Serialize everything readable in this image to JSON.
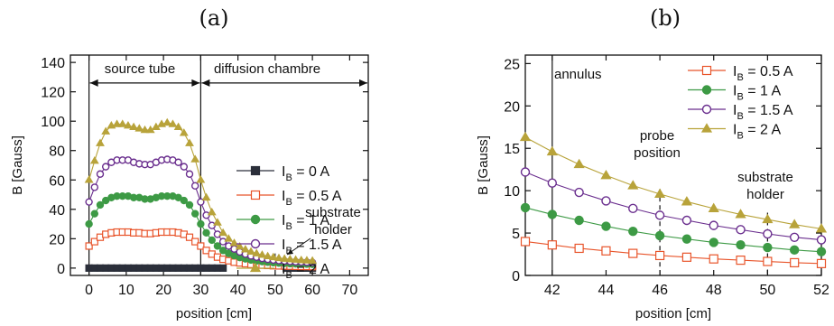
{
  "chart_data": [
    {
      "type": "scatter",
      "panel_label": "(a)",
      "xlabel": "position [cm]",
      "ylabel": "B [Gauss]",
      "xlim": [
        -5,
        75
      ],
      "ylim": [
        -5,
        145
      ],
      "xticks": [
        0,
        10,
        20,
        30,
        40,
        50,
        60,
        70
      ],
      "yticks": [
        0,
        20,
        40,
        60,
        80,
        100,
        120,
        140
      ],
      "grid": false,
      "legend_position": "right",
      "annotations": {
        "source_tube": "source tube",
        "diffusion_chambre": "diffusion chambre",
        "substrate": "substrate",
        "holder": "holder"
      },
      "vlines": [
        0,
        30
      ],
      "region_arrow_y": 126,
      "series": [
        {
          "name": "0 A",
          "marker": "square-filled",
          "color": "#2b2f3a",
          "x": [
            0,
            1.5,
            3,
            4.5,
            6,
            7.5,
            9,
            10.5,
            12,
            13.5,
            15,
            16.5,
            18,
            19.5,
            21,
            22.5,
            24,
            25.5,
            27,
            28.5,
            30,
            31.5,
            33,
            34.5,
            36,
            53,
            54,
            55,
            56,
            57,
            58,
            59,
            60
          ],
          "y": [
            0,
            0,
            0,
            0,
            0,
            0,
            0,
            0,
            0,
            0,
            0,
            0,
            0,
            0,
            0,
            0,
            0,
            0,
            0,
            0,
            0,
            0,
            0,
            0,
            0,
            0,
            0,
            0,
            0,
            0,
            0,
            0,
            0
          ]
        },
        {
          "name": "0.5 A",
          "marker": "square-open",
          "color": "#e8542a",
          "x": [
            0,
            1.5,
            3,
            4.5,
            6,
            7.5,
            9,
            10.5,
            12,
            13.5,
            15,
            16.5,
            18,
            19.5,
            21,
            22.5,
            24,
            25.5,
            27,
            28.5,
            30,
            31.5,
            33,
            34.5,
            36,
            37.5,
            39,
            40.5,
            42,
            43.5,
            45,
            46.5,
            48,
            49.5,
            51,
            52.5,
            54,
            55.5,
            57,
            58.5,
            60
          ],
          "y": [
            15,
            18,
            21,
            23,
            24,
            24.5,
            24.5,
            24.5,
            24,
            24,
            23.5,
            23.5,
            24,
            24.5,
            24.5,
            24.5,
            24,
            23,
            21,
            18,
            15,
            12,
            9.5,
            7.5,
            6,
            5,
            4,
            3.5,
            3,
            2.5,
            2.2,
            2,
            1.8,
            1.6,
            1.5,
            1.4,
            1.3,
            1.2,
            1.1,
            1.1,
            1
          ]
        },
        {
          "name": "1 A",
          "marker": "circle-filled",
          "color": "#3d9a45",
          "x": [
            0,
            1.5,
            3,
            4.5,
            6,
            7.5,
            9,
            10.5,
            12,
            13.5,
            15,
            16.5,
            18,
            19.5,
            21,
            22.5,
            24,
            25.5,
            27,
            28.5,
            30,
            31.5,
            33,
            34.5,
            36,
            37.5,
            39,
            40.5,
            42,
            43.5,
            45,
            46.5,
            48,
            49.5,
            51,
            52.5,
            54,
            55.5,
            57,
            58.5,
            60
          ],
          "y": [
            30,
            37,
            43,
            46,
            48,
            49,
            49,
            49,
            48,
            48,
            47,
            47,
            48,
            49,
            49,
            49,
            48,
            46,
            43,
            37,
            30,
            24,
            19,
            15,
            12,
            10,
            8.5,
            7.2,
            6.3,
            5.5,
            4.9,
            4.4,
            4,
            3.7,
            3.4,
            3.2,
            3,
            2.9,
            2.8,
            2.7,
            2.6
          ]
        },
        {
          "name": "1.5 A",
          "marker": "circle-open",
          "color": "#6a2e8e",
          "x": [
            0,
            1.5,
            3,
            4.5,
            6,
            7.5,
            9,
            10.5,
            12,
            13.5,
            15,
            16.5,
            18,
            19.5,
            21,
            22.5,
            24,
            25.5,
            27,
            28.5,
            30,
            31.5,
            33,
            34.5,
            36,
            37.5,
            39,
            40.5,
            42,
            43.5,
            45,
            46.5,
            48,
            49.5,
            51,
            52.5,
            54,
            55.5,
            57,
            58.5,
            60
          ],
          "y": [
            45,
            55,
            64,
            69,
            72,
            73.5,
            73.5,
            73.5,
            72,
            71,
            70.5,
            70.5,
            72,
            73.5,
            74,
            73.5,
            72,
            69,
            64,
            56,
            45,
            36,
            29,
            23,
            18,
            15,
            13,
            11,
            9.5,
            8.3,
            7.4,
            6.6,
            6,
            5.5,
            5.1,
            4.8,
            4.5,
            4.3,
            4.1,
            4,
            3.8
          ]
        },
        {
          "name": "2 A",
          "marker": "triangle-filled",
          "color": "#b8a33a",
          "x": [
            0,
            1.5,
            3,
            4.5,
            6,
            7.5,
            9,
            10.5,
            12,
            13.5,
            15,
            16.5,
            18,
            19.5,
            21,
            22.5,
            24,
            25.5,
            27,
            28.5,
            30,
            31.5,
            33,
            34.5,
            36,
            37.5,
            39,
            40.5,
            42,
            43.5,
            45,
            46.5,
            48,
            49.5,
            51,
            52.5,
            54,
            55.5,
            57,
            58.5,
            60
          ],
          "y": [
            60,
            73,
            85,
            93,
            97,
            98,
            98,
            97,
            96,
            95,
            94,
            94,
            96,
            98,
            99,
            98,
            96,
            92,
            85,
            74,
            60,
            48,
            38,
            31,
            24,
            20,
            17,
            14.6,
            12.7,
            11.2,
            10,
            9,
            8.1,
            7.4,
            6.8,
            6.3,
            6,
            5.7,
            5.4,
            5.2,
            5
          ]
        }
      ]
    },
    {
      "type": "line",
      "panel_label": "(b)",
      "xlabel": "position [cm]",
      "ylabel": "B [Gauss]",
      "xlim": [
        41,
        52
      ],
      "ylim": [
        0,
        26
      ],
      "xticks": [
        42,
        44,
        46,
        48,
        50,
        52
      ],
      "yticks": [
        0,
        5,
        10,
        15,
        20,
        25
      ],
      "grid": false,
      "legend_position": "top-right",
      "annotations": {
        "annulus": "annulus",
        "probe": "probe",
        "position": "position",
        "substrate": "substrate",
        "holder": "holder"
      },
      "vlines": [
        42,
        46,
        50
      ],
      "series": [
        {
          "name": "0.5 A",
          "marker": "square-open",
          "color": "#e8542a",
          "x": [
            41,
            42,
            43,
            44,
            45,
            46,
            47,
            48,
            49,
            50,
            51,
            52
          ],
          "y": [
            4.0,
            3.6,
            3.2,
            2.9,
            2.6,
            2.35,
            2.15,
            1.95,
            1.8,
            1.65,
            1.5,
            1.4
          ]
        },
        {
          "name": "1 A",
          "marker": "circle-filled",
          "color": "#3d9a45",
          "x": [
            41,
            42,
            43,
            44,
            45,
            46,
            47,
            48,
            49,
            50,
            51,
            52
          ],
          "y": [
            8.0,
            7.2,
            6.5,
            5.8,
            5.2,
            4.7,
            4.3,
            3.9,
            3.6,
            3.3,
            3.0,
            2.8
          ]
        },
        {
          "name": "1.5 A",
          "marker": "circle-open",
          "color": "#6a2e8e",
          "x": [
            41,
            42,
            43,
            44,
            45,
            46,
            47,
            48,
            49,
            50,
            51,
            52
          ],
          "y": [
            12.2,
            10.9,
            9.8,
            8.8,
            7.9,
            7.1,
            6.5,
            5.9,
            5.4,
            4.9,
            4.5,
            4.2
          ]
        },
        {
          "name": "2 A",
          "marker": "triangle-filled",
          "color": "#b8a33a",
          "x": [
            41,
            42,
            43,
            44,
            45,
            46,
            47,
            48,
            49,
            50,
            51,
            52
          ],
          "y": [
            16.3,
            14.6,
            13.1,
            11.8,
            10.6,
            9.6,
            8.7,
            7.9,
            7.2,
            6.6,
            6.0,
            5.5
          ]
        }
      ]
    }
  ],
  "legend_prefix": "I",
  "legend_sub": "B",
  "legend_eq": " = "
}
